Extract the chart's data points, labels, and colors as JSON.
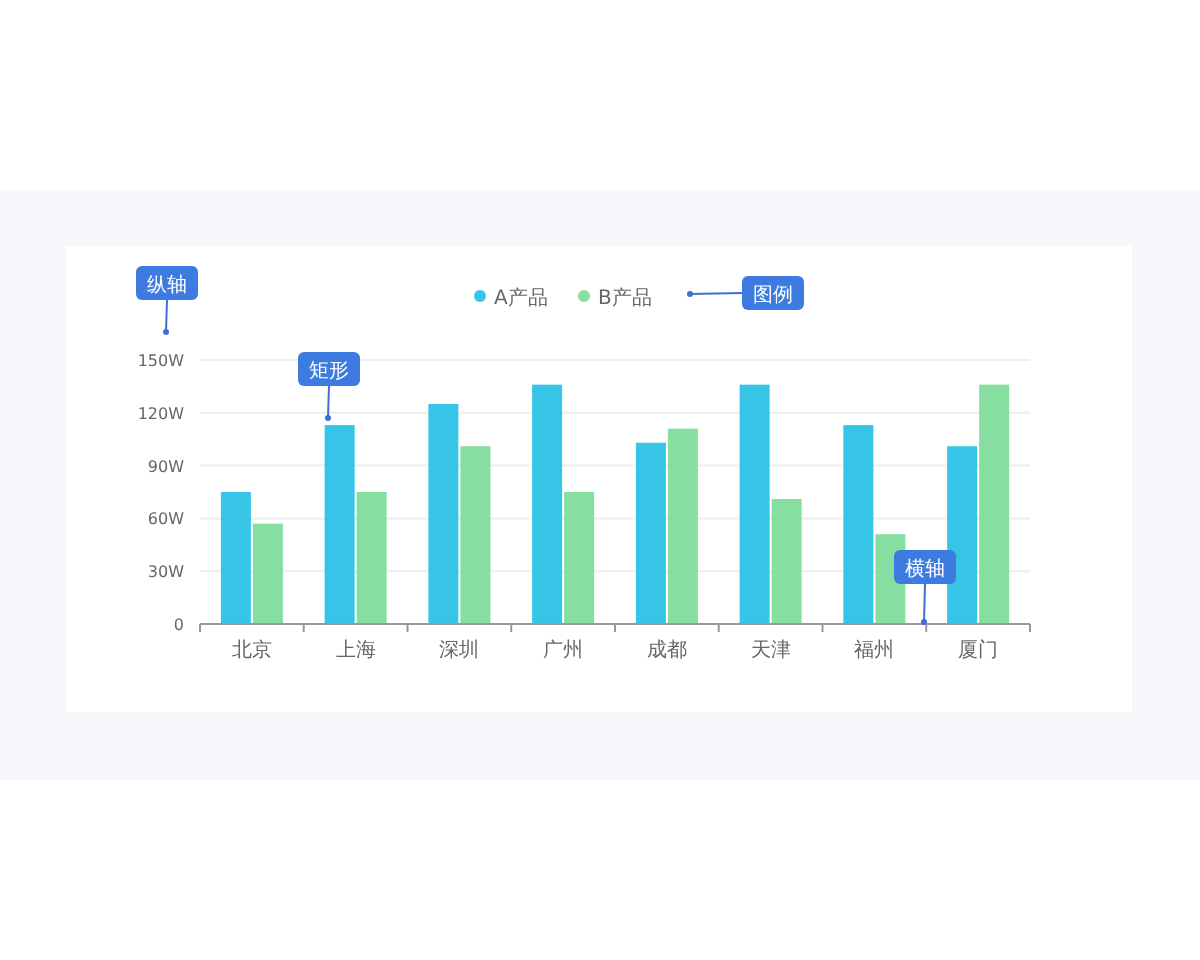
{
  "chart_data": {
    "type": "bar",
    "categories": [
      "北京",
      "上海",
      "深圳",
      "广州",
      "成都",
      "天津",
      "福州",
      "厦门"
    ],
    "series": [
      {
        "name": "A产品",
        "color": "#36c5e6",
        "values": [
          75,
          113,
          125,
          136,
          103,
          136,
          113,
          101
        ]
      },
      {
        "name": "B产品",
        "color": "#86dfa0",
        "values": [
          57,
          75,
          101,
          75,
          111,
          71,
          51,
          136
        ]
      }
    ],
    "ylim": [
      0,
      150
    ],
    "yticks": [
      0,
      {
        "value": 30,
        "label": "30W"
      },
      {
        "value": 60,
        "label": "60W"
      },
      {
        "value": 90,
        "label": "90W"
      },
      {
        "value": 120,
        "label": "120W"
      },
      {
        "value": 150,
        "label": "150W"
      }
    ],
    "grid": "y",
    "legend": "top",
    "marker": "circle",
    "annotations": [
      "纵轴",
      "矩形",
      "图例",
      "横轴"
    ]
  }
}
